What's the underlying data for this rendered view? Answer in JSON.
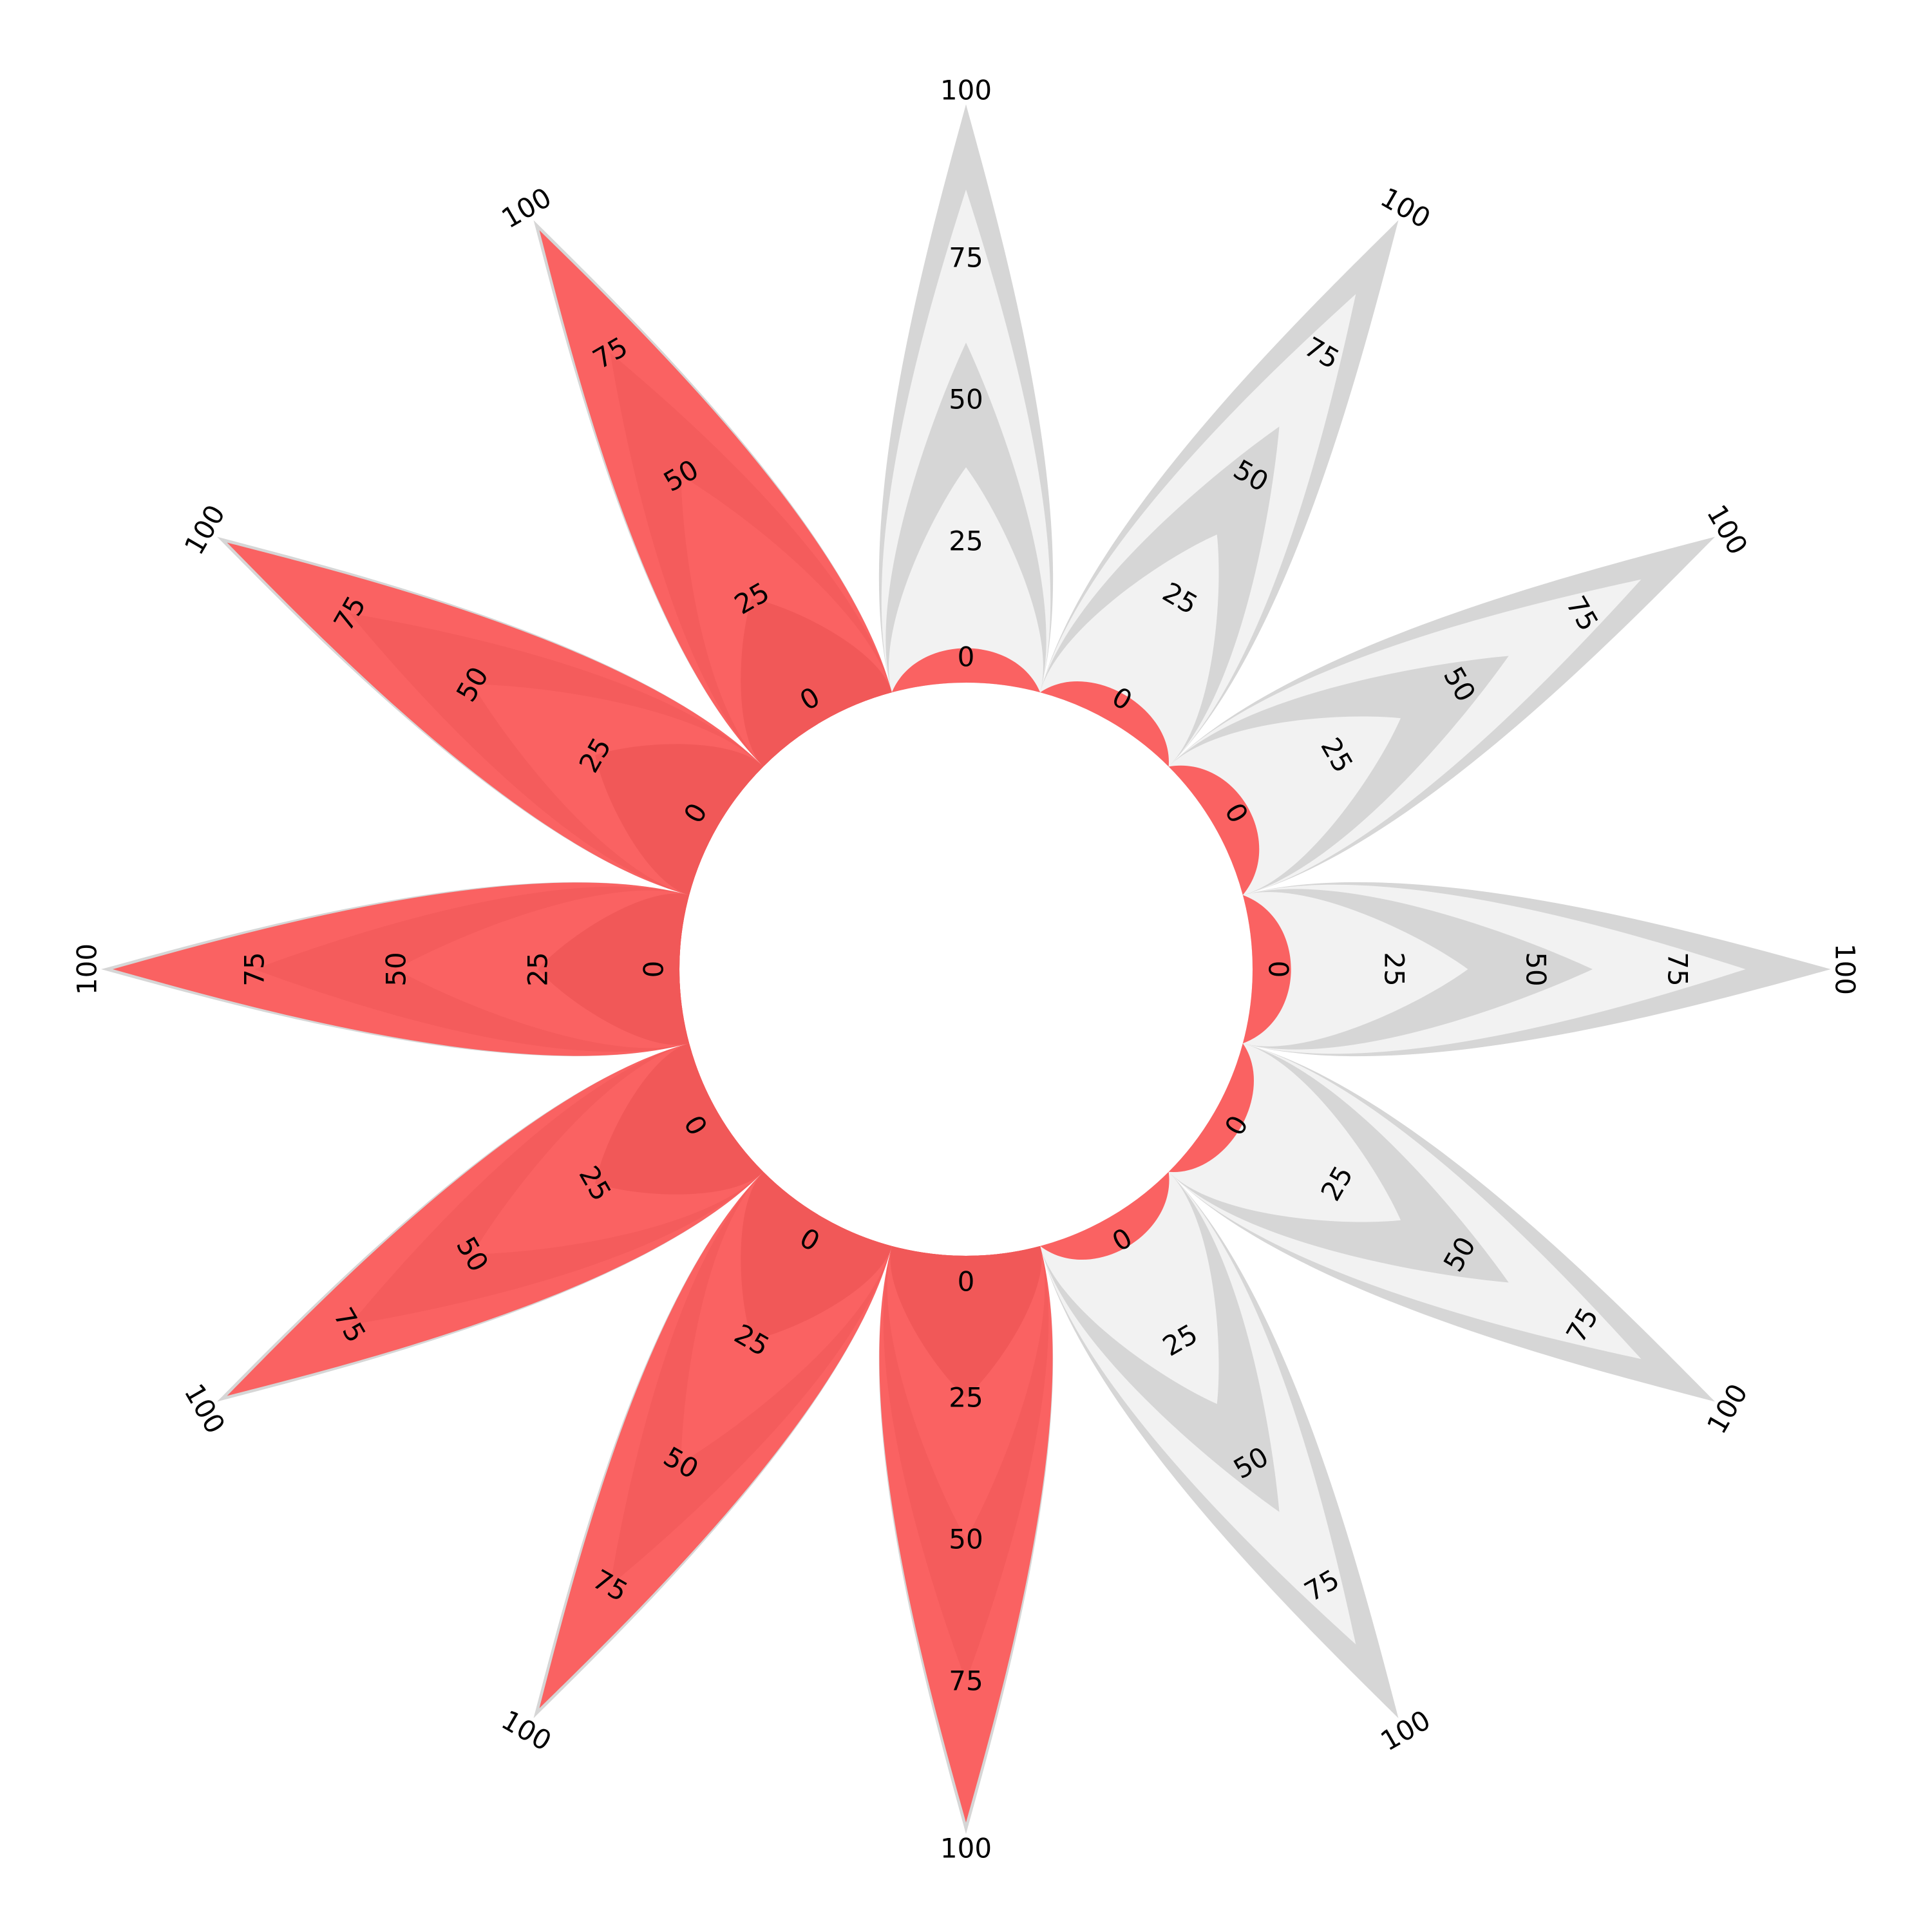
{
  "chart_data": {
    "type": "radial-petal",
    "direction": "clockwise",
    "start": "top",
    "axis_min": 0,
    "axis_max": 100,
    "ticks": [
      0,
      25,
      50,
      75,
      100
    ],
    "tick_labels": [
      "0",
      "25",
      "50",
      "75",
      "100"
    ],
    "values": [
      10,
      8,
      12,
      12,
      8,
      10,
      100,
      100,
      100,
      100,
      100,
      100
    ],
    "colors": {
      "filled": "#fa6262",
      "filled_alt": "#ef5757",
      "empty": "#f2f2f2",
      "empty_alt": "#d6d6d6",
      "outline": "#d6d6d6"
    }
  }
}
